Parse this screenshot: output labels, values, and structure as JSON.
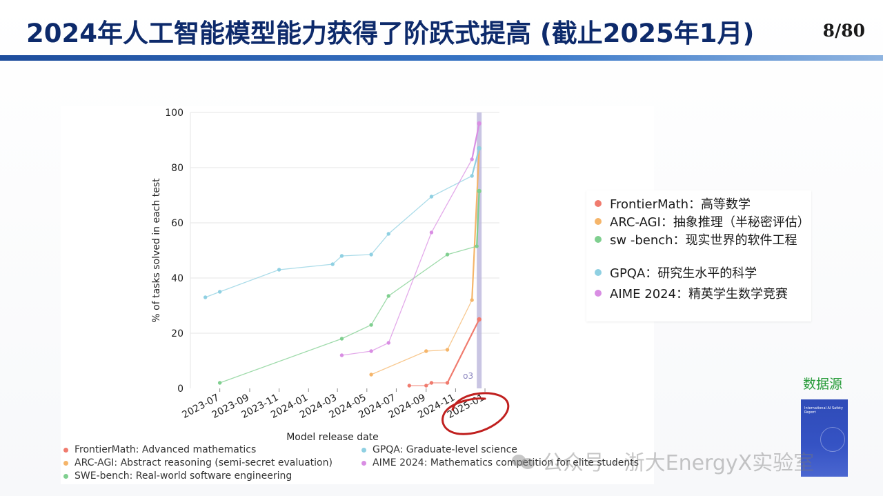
{
  "slide": {
    "title": "2024年人工智能模型能力获得了阶跃式提高 (截止2025年1月)",
    "page_number": "8/80",
    "source_label": "数据源",
    "report_cover_title": "International AI Safety Report",
    "watermark": "公众号 · 浙大EnergyX实验室"
  },
  "colors": {
    "title": "#0d2a6b",
    "frontiermath": "#f07b6e",
    "arc_agi": "#f5b56a",
    "swe_bench": "#7fcf8f",
    "gpqa": "#8fd0e2",
    "aime": "#d98ee3",
    "o3_band": "#bcb6dc",
    "annotation": "#c0201f",
    "source": "#2a9d3c"
  },
  "cn_legend": [
    {
      "key": "frontiermath",
      "text": "FrontierMath：高等数学"
    },
    {
      "key": "arc_agi",
      "text": "ARC-AGI：抽象推理（半秘密评估）"
    },
    {
      "key": "swe_bench",
      "text": "sw -bench：现实世界的软件工程"
    },
    {
      "key": "gpqa",
      "text": "GPQA：研究生水平的科学"
    },
    {
      "key": "aime",
      "text": "AIME 2024：精英学生数学竞赛"
    }
  ],
  "chart_data": {
    "type": "line",
    "xlabel": "Model release date",
    "ylabel": "% of tasks solved in each test",
    "ylim": [
      0,
      100
    ],
    "yticks": [
      0,
      20,
      40,
      60,
      80,
      100
    ],
    "xlim": [
      "2023-05-01",
      "2025-01-31"
    ],
    "xticks": [
      "2023-07",
      "2023-09",
      "2023-11",
      "2024-01",
      "2024-03",
      "2024-05",
      "2024-07",
      "2024-09",
      "2024-11",
      "2025-01"
    ],
    "grid": "horizontal",
    "highlight": {
      "label": "o3",
      "from": "2024-12-15",
      "to": "2024-12-25"
    },
    "circled_tick": "2025-01",
    "legend_position": "bottom",
    "series": [
      {
        "key": "frontiermath",
        "name": "FrontierMath: Advanced mathematics",
        "x": [
          "2024-07-28",
          "2024-09-01",
          "2024-09-12",
          "2024-10-15",
          "2024-12-20"
        ],
        "y": [
          1,
          1,
          2,
          2,
          25
        ]
      },
      {
        "key": "arc_agi",
        "name": "ARC-AGI: Abstract reasoning (semi-secret evaluation)",
        "x": [
          "2024-05-10",
          "2024-09-01",
          "2024-10-15",
          "2024-12-05",
          "2024-12-20"
        ],
        "y": [
          5,
          13.5,
          14,
          32,
          87
        ]
      },
      {
        "key": "swe_bench",
        "name": "SWE-bench: Real-world software engineering",
        "x": [
          "2023-07-01",
          "2024-03-10",
          "2024-05-10",
          "2024-06-15",
          "2024-10-15",
          "2024-12-15",
          "2024-12-20"
        ],
        "y": [
          2,
          18,
          23,
          33.5,
          48.5,
          51.5,
          71.5
        ]
      },
      {
        "key": "gpqa",
        "name": "GPQA: Graduate-level science",
        "x": [
          "2023-06-01",
          "2023-07-01",
          "2023-11-01",
          "2024-02-20",
          "2024-03-10",
          "2024-05-10",
          "2024-06-15",
          "2024-09-12",
          "2024-12-05",
          "2024-12-20"
        ],
        "y": [
          33,
          35,
          43,
          45,
          48,
          48.5,
          56,
          69.5,
          77,
          87
        ]
      },
      {
        "key": "aime",
        "name": "AIME 2024: Mathematics competition for elite students",
        "x": [
          "2024-03-10",
          "2024-05-10",
          "2024-06-15",
          "2024-09-12",
          "2024-12-05",
          "2024-12-20"
        ],
        "y": [
          12,
          13.5,
          16.5,
          56.5,
          83,
          96
        ]
      }
    ]
  }
}
